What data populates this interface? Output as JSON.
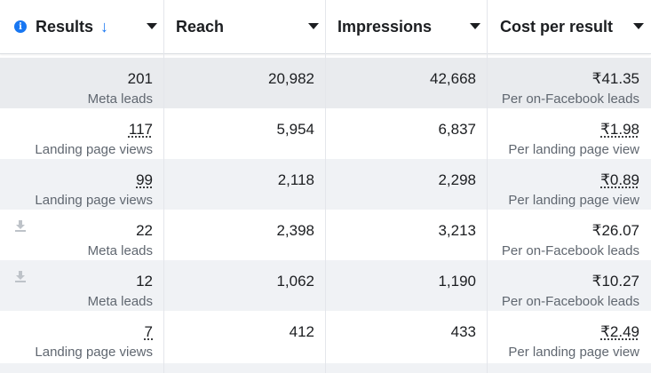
{
  "columns": [
    {
      "label": "Results",
      "sort_arrow": "↓"
    },
    {
      "label": "Reach"
    },
    {
      "label": "Impressions"
    },
    {
      "label": "Cost per result"
    }
  ],
  "rows": [
    {
      "results": "201",
      "result_type": "Meta leads",
      "reach": "20,982",
      "impressions": "42,668",
      "cost": "₹41.35",
      "cost_type": "Per on-Facebook leads"
    },
    {
      "results": "117",
      "result_type": "Landing page views",
      "reach": "5,954",
      "impressions": "6,837",
      "cost": "₹1.98",
      "cost_type": "Per landing page view"
    },
    {
      "results": "99",
      "result_type": "Landing page views",
      "reach": "2,118",
      "impressions": "2,298",
      "cost": "₹0.89",
      "cost_type": "Per landing page view"
    },
    {
      "results": "22",
      "result_type": "Meta leads",
      "reach": "2,398",
      "impressions": "3,213",
      "cost": "₹26.07",
      "cost_type": "Per on-Facebook leads"
    },
    {
      "results": "12",
      "result_type": "Meta leads",
      "reach": "1,062",
      "impressions": "1,190",
      "cost": "₹10.27",
      "cost_type": "Per on-Facebook leads"
    },
    {
      "results": "7",
      "result_type": "Landing page views",
      "reach": "412",
      "impressions": "433",
      "cost": "₹2.49",
      "cost_type": "Per landing page view"
    }
  ],
  "icons": {
    "info": "info-icon",
    "download": "download-icon",
    "dropdown": "chevron-down-icon"
  },
  "colors": {
    "accent": "#1877f2",
    "shade": "#f0f2f5",
    "border": "#e4e6eb"
  }
}
